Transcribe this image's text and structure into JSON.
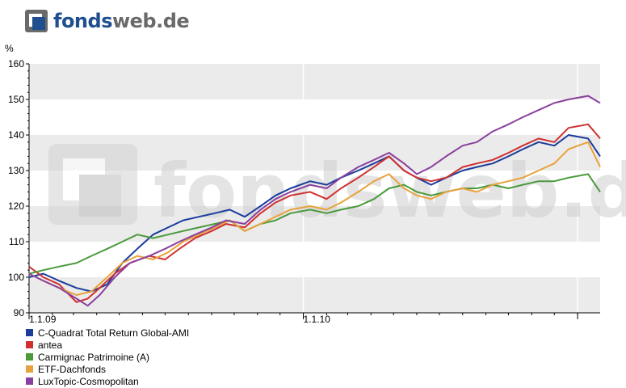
{
  "brand": {
    "logo_part1": "fonds",
    "logo_part2": "web.de",
    "watermark": "fondsweb.de"
  },
  "chart_data": {
    "type": "line",
    "title": "",
    "ylabel": "%",
    "xlabel": "",
    "ylim": [
      90,
      160
    ],
    "yticks": [
      90,
      100,
      110,
      120,
      130,
      140,
      150,
      160
    ],
    "xlim": [
      "2009-01-01",
      "2011-01-31"
    ],
    "xticks": [
      {
        "date": "2009-01-01",
        "label": "1.1.09"
      },
      {
        "date": "2010-01-01",
        "label": "1.1.10"
      },
      {
        "date": "2011-01-01",
        "label": ""
      }
    ],
    "grid": "alternating horizontal bands",
    "legend": "bottom-left",
    "series": [
      {
        "name": "C-Quadrat Total Return Global-AMI",
        "color": "#1a3d9c",
        "points": [
          [
            "2009-01-01",
            100
          ],
          [
            "2009-01-20",
            101
          ],
          [
            "2009-02-10",
            99
          ],
          [
            "2009-03-05",
            97
          ],
          [
            "2009-03-25",
            96
          ],
          [
            "2009-04-15",
            98
          ],
          [
            "2009-05-05",
            104
          ],
          [
            "2009-05-25",
            108
          ],
          [
            "2009-06-15",
            112
          ],
          [
            "2009-07-05",
            114
          ],
          [
            "2009-07-25",
            116
          ],
          [
            "2009-08-15",
            117
          ],
          [
            "2009-09-05",
            118
          ],
          [
            "2009-09-25",
            119
          ],
          [
            "2009-10-15",
            117
          ],
          [
            "2009-11-05",
            120
          ],
          [
            "2009-11-25",
            123
          ],
          [
            "2009-12-15",
            125
          ],
          [
            "2010-01-10",
            127
          ],
          [
            "2010-02-01",
            126
          ],
          [
            "2010-02-20",
            128
          ],
          [
            "2010-03-15",
            130
          ],
          [
            "2010-04-05",
            132
          ],
          [
            "2010-04-25",
            134
          ],
          [
            "2010-05-15",
            130
          ],
          [
            "2010-06-01",
            128
          ],
          [
            "2010-06-20",
            126
          ],
          [
            "2010-07-10",
            128
          ],
          [
            "2010-08-01",
            130
          ],
          [
            "2010-08-20",
            131
          ],
          [
            "2010-09-10",
            132
          ],
          [
            "2010-10-01",
            134
          ],
          [
            "2010-10-20",
            136
          ],
          [
            "2010-11-10",
            138
          ],
          [
            "2010-12-01",
            137
          ],
          [
            "2010-12-20",
            140
          ],
          [
            "2011-01-15",
            139
          ],
          [
            "2011-01-31",
            134
          ]
        ]
      },
      {
        "name": "antea",
        "color": "#d03030",
        "points": [
          [
            "2009-01-01",
            103
          ],
          [
            "2009-01-20",
            100
          ],
          [
            "2009-02-10",
            98
          ],
          [
            "2009-03-05",
            93
          ],
          [
            "2009-03-20",
            94
          ],
          [
            "2009-04-05",
            97
          ],
          [
            "2009-04-25",
            101
          ],
          [
            "2009-05-15",
            104
          ],
          [
            "2009-06-10",
            106
          ],
          [
            "2009-07-01",
            105
          ],
          [
            "2009-07-20",
            108
          ],
          [
            "2009-08-10",
            111
          ],
          [
            "2009-09-01",
            113
          ],
          [
            "2009-09-20",
            115
          ],
          [
            "2009-10-15",
            114
          ],
          [
            "2009-11-05",
            118
          ],
          [
            "2009-11-25",
            121
          ],
          [
            "2009-12-15",
            123
          ],
          [
            "2010-01-10",
            124
          ],
          [
            "2010-02-01",
            122
          ],
          [
            "2010-02-20",
            125
          ],
          [
            "2010-03-15",
            128
          ],
          [
            "2010-04-05",
            131
          ],
          [
            "2010-04-25",
            134
          ],
          [
            "2010-05-15",
            130
          ],
          [
            "2010-06-01",
            128
          ],
          [
            "2010-06-20",
            127
          ],
          [
            "2010-07-10",
            128
          ],
          [
            "2010-08-01",
            131
          ],
          [
            "2010-08-20",
            132
          ],
          [
            "2010-09-10",
            133
          ],
          [
            "2010-10-01",
            135
          ],
          [
            "2010-10-20",
            137
          ],
          [
            "2010-11-10",
            139
          ],
          [
            "2010-12-01",
            138
          ],
          [
            "2010-12-20",
            142
          ],
          [
            "2011-01-15",
            143
          ],
          [
            "2011-01-31",
            139
          ]
        ]
      },
      {
        "name": "Carmignac Patrimoine (A)",
        "color": "#4a9a3c",
        "points": [
          [
            "2009-01-01",
            101
          ],
          [
            "2009-01-20",
            102
          ],
          [
            "2009-02-10",
            103
          ],
          [
            "2009-03-05",
            104
          ],
          [
            "2009-03-25",
            106
          ],
          [
            "2009-04-15",
            108
          ],
          [
            "2009-05-05",
            110
          ],
          [
            "2009-05-25",
            112
          ],
          [
            "2009-06-15",
            111
          ],
          [
            "2009-07-05",
            112
          ],
          [
            "2009-07-25",
            113
          ],
          [
            "2009-08-15",
            114
          ],
          [
            "2009-09-05",
            115
          ],
          [
            "2009-09-25",
            116
          ],
          [
            "2009-10-15",
            113
          ],
          [
            "2009-11-05",
            115
          ],
          [
            "2009-11-25",
            116
          ],
          [
            "2009-12-15",
            118
          ],
          [
            "2010-01-10",
            119
          ],
          [
            "2010-02-01",
            118
          ],
          [
            "2010-02-20",
            119
          ],
          [
            "2010-03-15",
            120
          ],
          [
            "2010-04-05",
            122
          ],
          [
            "2010-04-25",
            125
          ],
          [
            "2010-05-15",
            126
          ],
          [
            "2010-06-01",
            124
          ],
          [
            "2010-06-20",
            123
          ],
          [
            "2010-07-10",
            124
          ],
          [
            "2010-08-01",
            125
          ],
          [
            "2010-08-20",
            125
          ],
          [
            "2010-09-10",
            126
          ],
          [
            "2010-10-01",
            125
          ],
          [
            "2010-10-20",
            126
          ],
          [
            "2010-11-10",
            127
          ],
          [
            "2010-12-01",
            127
          ],
          [
            "2010-12-20",
            128
          ],
          [
            "2011-01-15",
            129
          ],
          [
            "2011-01-31",
            124
          ]
        ]
      },
      {
        "name": "ETF-Dachfonds",
        "color": "#e8a23c",
        "points": [
          [
            "2009-01-01",
            101
          ],
          [
            "2009-01-20",
            99
          ],
          [
            "2009-02-10",
            97
          ],
          [
            "2009-03-05",
            95
          ],
          [
            "2009-03-25",
            96
          ],
          [
            "2009-04-15",
            100
          ],
          [
            "2009-05-05",
            104
          ],
          [
            "2009-05-25",
            106
          ],
          [
            "2009-06-15",
            105
          ],
          [
            "2009-07-05",
            107
          ],
          [
            "2009-07-25",
            110
          ],
          [
            "2009-08-15",
            112
          ],
          [
            "2009-09-05",
            114
          ],
          [
            "2009-09-25",
            116
          ],
          [
            "2009-10-15",
            113
          ],
          [
            "2009-11-05",
            115
          ],
          [
            "2009-11-25",
            117
          ],
          [
            "2009-12-15",
            119
          ],
          [
            "2010-01-10",
            120
          ],
          [
            "2010-02-01",
            119
          ],
          [
            "2010-02-20",
            121
          ],
          [
            "2010-03-15",
            124
          ],
          [
            "2010-04-05",
            127
          ],
          [
            "2010-04-25",
            129
          ],
          [
            "2010-05-15",
            125
          ],
          [
            "2010-06-01",
            123
          ],
          [
            "2010-06-20",
            122
          ],
          [
            "2010-07-10",
            124
          ],
          [
            "2010-08-01",
            125
          ],
          [
            "2010-08-20",
            124
          ],
          [
            "2010-09-10",
            126
          ],
          [
            "2010-10-01",
            127
          ],
          [
            "2010-10-20",
            128
          ],
          [
            "2010-11-10",
            130
          ],
          [
            "2010-12-01",
            132
          ],
          [
            "2010-12-20",
            136
          ],
          [
            "2011-01-15",
            138
          ],
          [
            "2011-01-31",
            131
          ]
        ]
      },
      {
        "name": "LuxTopic-Cosmopolitan",
        "color": "#8a3f9e",
        "points": [
          [
            "2009-01-01",
            101
          ],
          [
            "2009-01-20",
            99
          ],
          [
            "2009-02-10",
            97
          ],
          [
            "2009-03-05",
            94
          ],
          [
            "2009-03-20",
            92
          ],
          [
            "2009-04-05",
            95
          ],
          [
            "2009-04-25",
            100
          ],
          [
            "2009-05-15",
            104
          ],
          [
            "2009-06-10",
            106
          ],
          [
            "2009-07-01",
            108
          ],
          [
            "2009-07-20",
            110
          ],
          [
            "2009-08-10",
            112
          ],
          [
            "2009-09-01",
            114
          ],
          [
            "2009-09-20",
            116
          ],
          [
            "2009-10-15",
            115
          ],
          [
            "2009-11-05",
            119
          ],
          [
            "2009-11-25",
            122
          ],
          [
            "2009-12-15",
            124
          ],
          [
            "2010-01-10",
            126
          ],
          [
            "2010-02-01",
            125
          ],
          [
            "2010-02-20",
            128
          ],
          [
            "2010-03-15",
            131
          ],
          [
            "2010-04-05",
            133
          ],
          [
            "2010-04-25",
            135
          ],
          [
            "2010-05-15",
            132
          ],
          [
            "2010-06-01",
            129
          ],
          [
            "2010-06-20",
            131
          ],
          [
            "2010-07-10",
            134
          ],
          [
            "2010-08-01",
            137
          ],
          [
            "2010-08-20",
            138
          ],
          [
            "2010-09-10",
            141
          ],
          [
            "2010-10-01",
            143
          ],
          [
            "2010-10-20",
            145
          ],
          [
            "2010-11-10",
            147
          ],
          [
            "2010-12-01",
            149
          ],
          [
            "2010-12-20",
            150
          ],
          [
            "2011-01-15",
            151
          ],
          [
            "2011-01-31",
            149
          ]
        ]
      }
    ]
  }
}
